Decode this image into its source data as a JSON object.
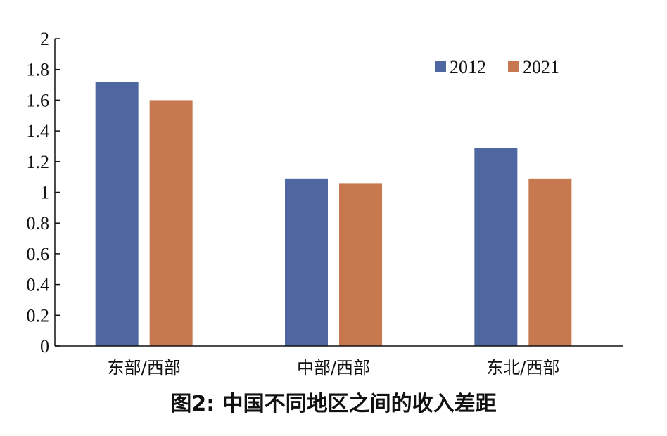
{
  "chart_data": {
    "type": "bar",
    "title": "图2: 中国不同地区之间的收入差距",
    "categories": [
      "东部/西部",
      "中部/西部",
      "东北/西部"
    ],
    "series": [
      {
        "name": "2012",
        "color": "#4e67a0",
        "values": [
          1.72,
          1.09,
          1.29
        ]
      },
      {
        "name": "2021",
        "color": "#c7784e",
        "values": [
          1.6,
          1.06,
          1.09
        ]
      }
    ],
    "yticks": [
      "0",
      "0.2",
      "0.4",
      "0.6",
      "0.8",
      "1",
      "1.2",
      "1.4",
      "1.6",
      "1.8",
      "2"
    ],
    "ylim": [
      0,
      2
    ],
    "xlabel": "",
    "ylabel": "",
    "legend_position": "top-right"
  }
}
